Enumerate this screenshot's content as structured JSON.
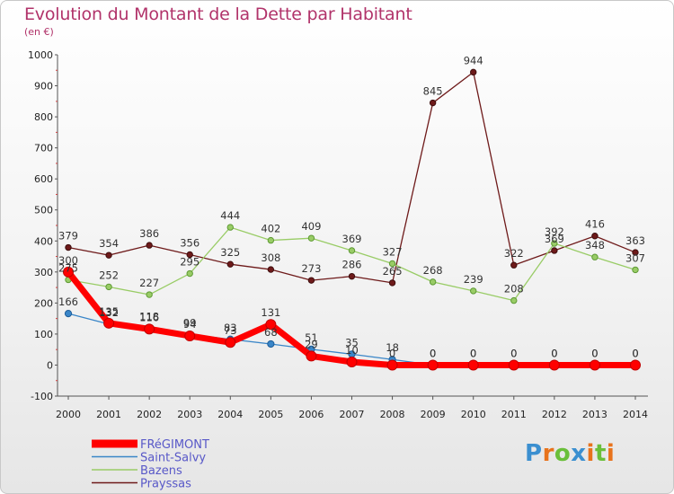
{
  "header": {
    "title": "Evolution du Montant de la Dette par Habitant",
    "subtitle": "(en €)"
  },
  "logo": {
    "text": "Proxiti",
    "colors": [
      "#3b8fd0",
      "#e8731c",
      "#6abf3a",
      "#3b8fd0",
      "#e8731c",
      "#6abf3a",
      "#e8731c"
    ]
  },
  "chart_data": {
    "type": "line",
    "title": "Evolution du Montant de la Dette par Habitant",
    "subtitle": "(en €)",
    "xlabel": "",
    "ylabel": "",
    "ylim": [
      -100,
      1000
    ],
    "yticks": [
      -100,
      0,
      100,
      200,
      300,
      400,
      500,
      600,
      700,
      800,
      900,
      1000
    ],
    "grid": false,
    "legend_position": "bottom-left",
    "x": [
      "2000",
      "2001",
      "2002",
      "2003",
      "2004",
      "2005",
      "2006",
      "2007",
      "2008",
      "2009",
      "2010",
      "2011",
      "2012",
      "2013",
      "2014"
    ],
    "series": [
      {
        "name": "Prayssas",
        "color": "#6e1a1a",
        "values": [
          379,
          354,
          386,
          356,
          325,
          308,
          273,
          286,
          265,
          845,
          944,
          322,
          369,
          416,
          363
        ]
      },
      {
        "name": "Bazens",
        "color": "#99cc66",
        "values": [
          275,
          252,
          227,
          295,
          444,
          402,
          409,
          369,
          327,
          268,
          239,
          208,
          392,
          348,
          307
        ]
      },
      {
        "name": "Saint-Salvy",
        "color": "#3a86c8",
        "values": [
          166,
          132,
          118,
          99,
          83,
          68,
          51,
          35,
          18,
          0,
          0,
          0,
          0,
          0,
          0
        ]
      },
      {
        "name": "FRéGIMONT",
        "color": "#ff0000",
        "values": [
          300,
          135,
          116,
          94,
          73,
          131,
          29,
          10,
          0,
          0,
          0,
          0,
          0,
          0,
          0
        ]
      }
    ]
  }
}
